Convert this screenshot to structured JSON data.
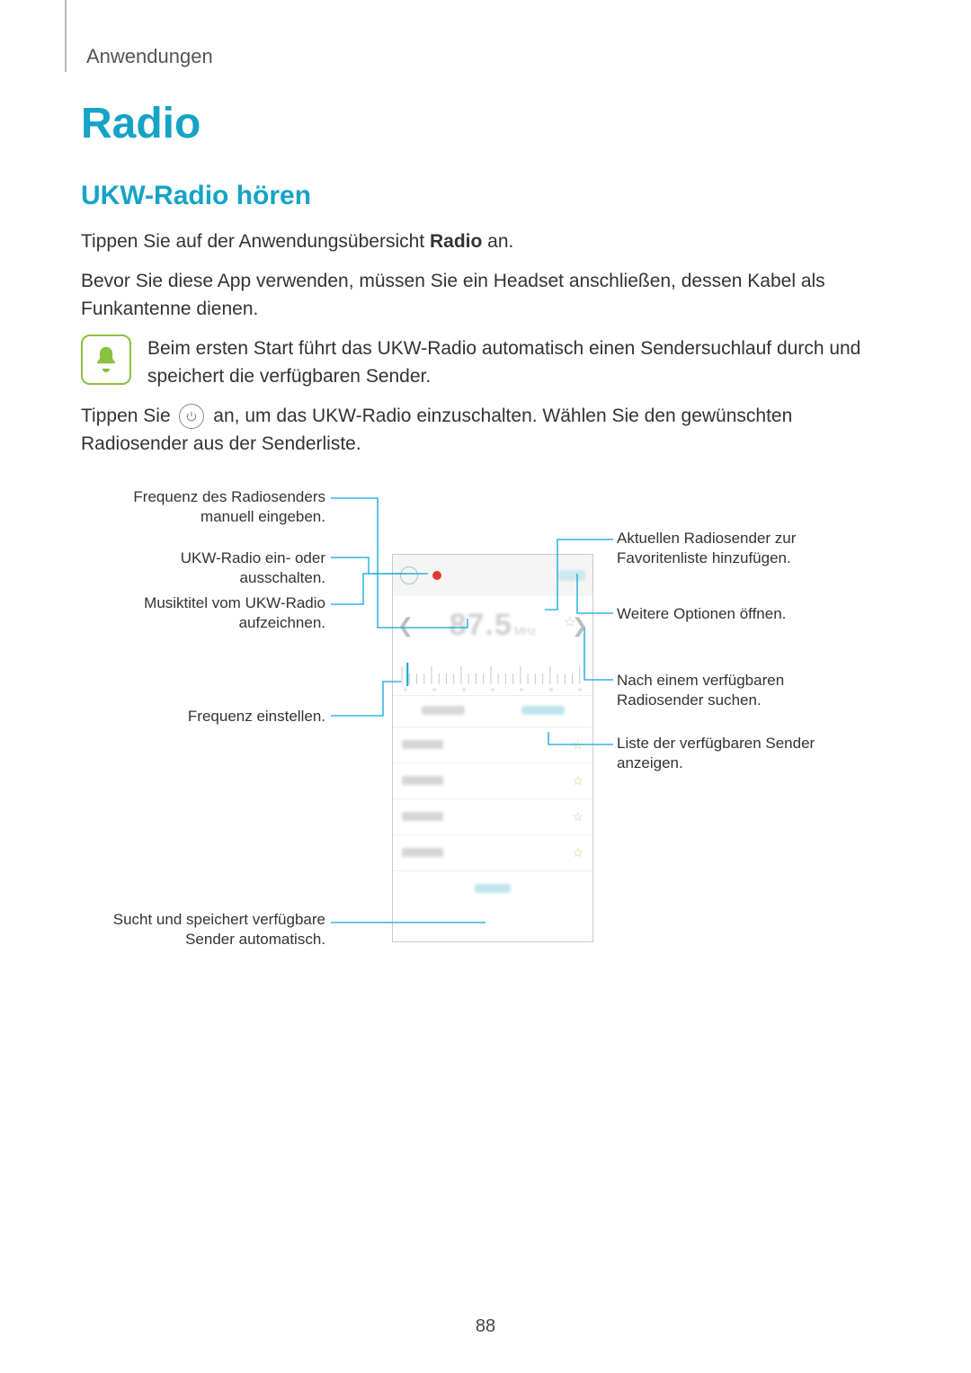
{
  "breadcrumb": "Anwendungen",
  "title": "Radio",
  "subtitle": "UKW-Radio hören",
  "para1_pre": "Tippen Sie auf der Anwendungsübersicht ",
  "para1_bold": "Radio",
  "para1_post": " an.",
  "para2": "Bevor Sie diese App verwenden, müssen Sie ein Headset anschließen, dessen Kabel als Funkantenne dienen.",
  "note": "Beim ersten Start führt das UKW-Radio automatisch einen Sendersuchlauf durch und speichert die verfügbaren Sender.",
  "para3_pre": "Tippen Sie ",
  "para3_post": " an, um das UKW-Radio einzuschalten. Wählen Sie den gewünschten Radiosender aus der Senderliste.",
  "labels": {
    "left": [
      "Frequenz des Radiosenders manuell eingeben.",
      "UKW-Radio ein- oder ausschalten.",
      "Musiktitel vom UKW-Radio aufzeichnen.",
      "Frequenz einstellen.",
      "Sucht und speichert verfügbare Sender automatisch."
    ],
    "right": [
      "Aktuellen Radiosender zur Favoritenliste hinzufügen.",
      "Weitere Optionen öffnen.",
      "Nach einem verfügbaren Radiosender suchen.",
      "Liste der verfügbaren Sender anzeigen."
    ]
  },
  "phone": {
    "frequency_display": "87.5",
    "frequency_unit": "MHz",
    "station_count": 4
  },
  "colors": {
    "accent": "#15a3c6",
    "lead_line": "#0aa5d8",
    "note_border": "#8ac23f",
    "note_fill": "#8ac23f",
    "record_dot": "#e23b2e"
  },
  "page_number": "88"
}
